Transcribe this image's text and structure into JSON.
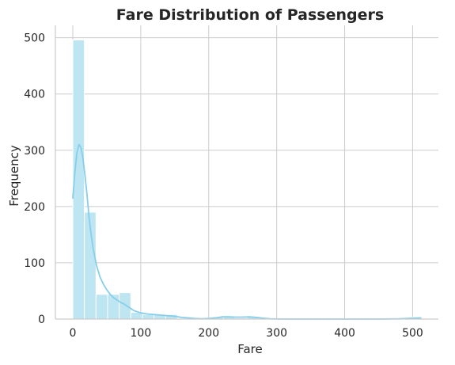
{
  "chart_data": {
    "type": "bar",
    "title": "Fare Distribution of Passengers",
    "xlabel": "Fare",
    "ylabel": "Frequency",
    "xlim": [
      -25.6,
      537.9
    ],
    "ylim": [
      0,
      522
    ],
    "x_ticks": [
      0,
      100,
      200,
      300,
      400,
      500
    ],
    "y_ticks": [
      0,
      100,
      200,
      300,
      400,
      500
    ],
    "grid": true,
    "bin_width": 17.08,
    "bins": [
      {
        "x0": 0.0,
        "x1": 17.08,
        "count": 496
      },
      {
        "x0": 17.08,
        "x1": 34.16,
        "count": 190
      },
      {
        "x0": 34.16,
        "x1": 51.23,
        "count": 44
      },
      {
        "x0": 51.23,
        "x1": 68.31,
        "count": 44
      },
      {
        "x0": 68.31,
        "x1": 85.39,
        "count": 47
      },
      {
        "x0": 85.39,
        "x1": 102.47,
        "count": 12
      },
      {
        "x0": 102.47,
        "x1": 119.55,
        "count": 8
      },
      {
        "x0": 119.55,
        "x1": 136.62,
        "count": 8
      },
      {
        "x0": 136.62,
        "x1": 153.7,
        "count": 8
      },
      {
        "x0": 153.7,
        "x1": 170.78,
        "count": 0
      },
      {
        "x0": 170.78,
        "x1": 187.86,
        "count": 0
      },
      {
        "x0": 187.86,
        "x1": 204.94,
        "count": 0
      },
      {
        "x0": 204.94,
        "x1": 222.01,
        "count": 4
      },
      {
        "x0": 222.01,
        "x1": 239.09,
        "count": 4
      },
      {
        "x0": 239.09,
        "x1": 256.17,
        "count": 2
      },
      {
        "x0": 256.17,
        "x1": 273.25,
        "count": 4
      },
      {
        "x0": 273.25,
        "x1": 290.33,
        "count": 0
      },
      {
        "x0": 290.33,
        "x1": 307.4,
        "count": 0
      },
      {
        "x0": 307.4,
        "x1": 324.48,
        "count": 0
      },
      {
        "x0": 324.48,
        "x1": 341.56,
        "count": 0
      },
      {
        "x0": 341.56,
        "x1": 358.64,
        "count": 0
      },
      {
        "x0": 358.64,
        "x1": 375.71,
        "count": 0
      },
      {
        "x0": 375.71,
        "x1": 392.79,
        "count": 0
      },
      {
        "x0": 392.79,
        "x1": 409.87,
        "count": 0
      },
      {
        "x0": 409.87,
        "x1": 426.95,
        "count": 0
      },
      {
        "x0": 426.95,
        "x1": 444.03,
        "count": 0
      },
      {
        "x0": 444.03,
        "x1": 461.1,
        "count": 0
      },
      {
        "x0": 461.1,
        "x1": 478.18,
        "count": 0
      },
      {
        "x0": 478.18,
        "x1": 495.26,
        "count": 0
      },
      {
        "x0": 495.26,
        "x1": 512.33,
        "count": 3
      }
    ],
    "kde_curve": {
      "x": [
        0,
        3,
        6,
        9,
        12,
        15,
        18,
        21,
        24,
        27,
        30,
        35,
        40,
        45,
        50,
        55,
        60,
        65,
        70,
        75,
        80,
        85,
        90,
        100,
        110,
        120,
        130,
        140,
        150,
        160,
        170,
        180,
        190,
        200,
        210,
        220,
        230,
        240,
        250,
        260,
        270,
        280,
        290,
        300,
        320,
        350,
        400,
        450,
        480,
        500,
        512
      ],
      "y": [
        215,
        260,
        295,
        310,
        305,
        285,
        255,
        220,
        180,
        150,
        125,
        95,
        75,
        62,
        52,
        44,
        38,
        34,
        30,
        27,
        23,
        19,
        15,
        11,
        9,
        8,
        7,
        6,
        5,
        3,
        2,
        1,
        0.5,
        1,
        2,
        4,
        4,
        3.5,
        3.5,
        4,
        3,
        1.5,
        0.5,
        0.2,
        0,
        0,
        0,
        0,
        0.5,
        1.5,
        2
      ]
    },
    "colors": {
      "bar_fill": "#bde5f2",
      "bar_edge": "#ffffff",
      "kde_line": "#87ceeb",
      "grid": "#cccccc",
      "axis": "#cccccc",
      "text": "#262626"
    }
  }
}
